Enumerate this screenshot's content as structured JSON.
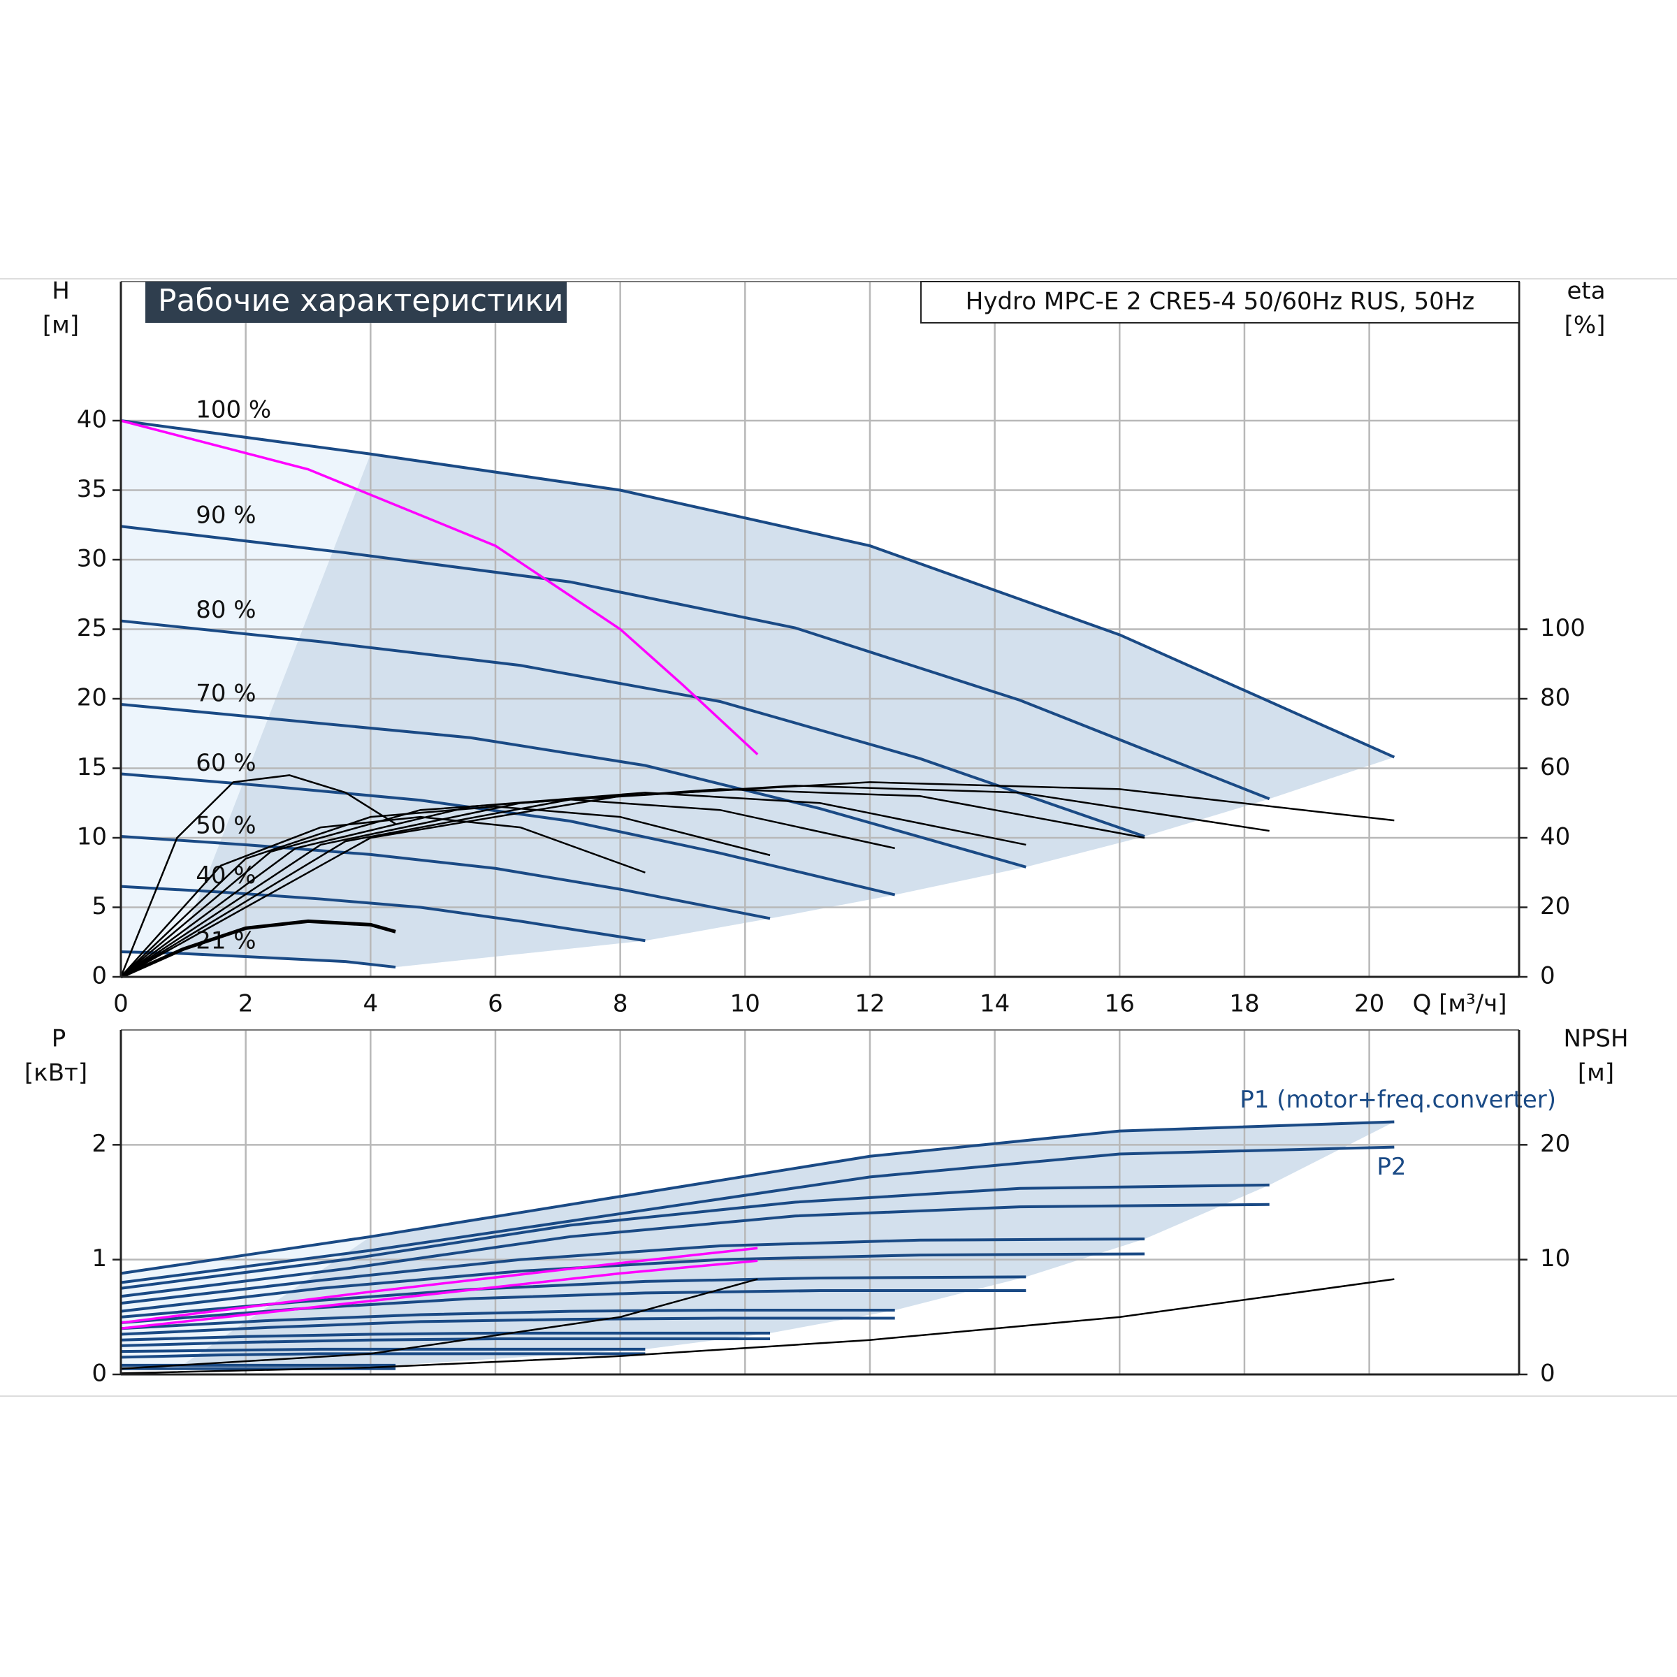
{
  "chart_data": [
    {
      "type": "line",
      "title": "Рабочие характеристики",
      "subtitle": "Hydro MPC-E 2 CRE5-4 50/60Hz RUS, 50Hz",
      "y_label": "H",
      "y_unit": "[м]",
      "y2_label": "eta",
      "y2_unit": "[%]",
      "x_label": "Q [м³/ч]",
      "xlim": [
        0,
        22.4
      ],
      "xticks": [
        0,
        2,
        4,
        6,
        8,
        10,
        12,
        14,
        16,
        18,
        20
      ],
      "ylim": [
        0,
        50
      ],
      "yticks": [
        0,
        5,
        10,
        15,
        20,
        25,
        30,
        35,
        40
      ],
      "y2lim": [
        0,
        200
      ],
      "y2ticks": [
        0,
        20,
        40,
        60,
        80,
        100
      ],
      "grid": true,
      "series": [
        {
          "name": "100 %",
          "color": "#1a4a85",
          "x": [
            0,
            4,
            8,
            12,
            16,
            20.4
          ],
          "values": [
            40,
            37.6,
            35,
            31,
            24.6,
            15.8
          ]
        },
        {
          "name": "90 %",
          "color": "#1a4a85",
          "x": [
            0,
            3.6,
            7.2,
            10.8,
            14.4,
            18.4
          ],
          "values": [
            32.4,
            30.5,
            28.4,
            25.1,
            19.9,
            12.8
          ]
        },
        {
          "name": "80 %",
          "color": "#1a4a85",
          "x": [
            0,
            3.2,
            6.4,
            9.6,
            12.8,
            16.4
          ],
          "values": [
            25.6,
            24.1,
            22.4,
            19.8,
            15.7,
            10.1
          ]
        },
        {
          "name": "70 %",
          "color": "#1a4a85",
          "x": [
            0,
            2.8,
            5.6,
            8.4,
            11.2,
            14.5
          ],
          "values": [
            19.6,
            18.4,
            17.2,
            15.2,
            12.1,
            7.9
          ]
        },
        {
          "name": "60 %",
          "color": "#1a4a85",
          "x": [
            0,
            2.4,
            4.8,
            7.2,
            9.6,
            12.4
          ],
          "values": [
            14.6,
            13.7,
            12.7,
            11.2,
            8.9,
            5.9
          ]
        },
        {
          "name": "50 %",
          "color": "#1a4a85",
          "x": [
            0,
            2,
            4,
            6,
            8,
            10.4
          ],
          "values": [
            10.1,
            9.5,
            8.8,
            7.8,
            6.3,
            4.2
          ]
        },
        {
          "name": "40 %",
          "color": "#1a4a85",
          "x": [
            0,
            1.6,
            3.2,
            4.8,
            6.4,
            8.4
          ],
          "values": [
            6.5,
            6.1,
            5.6,
            5.0,
            4.0,
            2.6
          ]
        },
        {
          "name": "21 %",
          "color": "#1a4a85",
          "x": [
            0,
            0.9,
            1.8,
            2.7,
            3.6,
            4.4
          ],
          "values": [
            1.8,
            1.7,
            1.5,
            1.3,
            1.1,
            0.7
          ]
        },
        {
          "color": "#ff00ff",
          "x": [
            0,
            3,
            6,
            8,
            9,
            10.2
          ],
          "values": [
            40,
            36.5,
            31,
            25,
            21,
            16
          ]
        },
        {
          "color": "#000000",
          "axis": "y2",
          "x": [
            0,
            4,
            8,
            12,
            16,
            20.4
          ],
          "values": [
            0,
            40,
            52,
            56,
            54,
            45
          ]
        },
        {
          "color": "#000000",
          "axis": "y2",
          "x": [
            0,
            3.6,
            7.2,
            10.8,
            14.4,
            18.4
          ],
          "values": [
            0,
            39,
            51,
            55,
            53,
            42
          ]
        },
        {
          "color": "#000000",
          "axis": "y2",
          "x": [
            0,
            3.2,
            6.4,
            9.6,
            12.8,
            16.4
          ],
          "values": [
            0,
            38,
            50,
            54,
            52,
            40
          ]
        },
        {
          "color": "#000000",
          "axis": "y2",
          "x": [
            0,
            2.8,
            5.6,
            8.4,
            11.2,
            14.5
          ],
          "values": [
            0,
            37,
            49,
            53,
            50,
            38
          ]
        },
        {
          "color": "#000000",
          "axis": "y2",
          "x": [
            0,
            2.4,
            4.8,
            7.2,
            9.6,
            12.4
          ],
          "values": [
            0,
            36,
            48,
            51,
            48,
            37
          ]
        },
        {
          "color": "#000000",
          "axis": "y2",
          "x": [
            0,
            2,
            4,
            6,
            8,
            10.4
          ],
          "values": [
            0,
            34,
            46,
            49,
            46,
            35
          ]
        },
        {
          "color": "#000000",
          "axis": "y2",
          "x": [
            0,
            1.6,
            3.2,
            4.8,
            6.4,
            8.4
          ],
          "values": [
            0,
            32,
            43,
            46,
            43,
            30
          ]
        },
        {
          "color": "#000000",
          "axis": "y2",
          "x": [
            0,
            0.9,
            1.8,
            2.7,
            3.6,
            4.4
          ],
          "values": [
            0,
            40,
            56,
            58,
            53,
            44
          ]
        },
        {
          "color": "#000000",
          "axis": "y2",
          "x": [
            0,
            1,
            2,
            3,
            4,
            4.4
          ],
          "values": [
            0,
            8,
            14,
            16,
            15,
            13
          ]
        }
      ]
    },
    {
      "type": "line",
      "y_label": "P",
      "y_unit": "[кВт]",
      "y2_label": "NPSH",
      "y2_unit": "[м]",
      "ylim": [
        0,
        3
      ],
      "yticks": [
        0,
        1,
        2
      ],
      "y2lim": [
        0,
        30
      ],
      "y2ticks": [
        0,
        10,
        20
      ],
      "grid": true,
      "series": [
        {
          "name": "P1 (motor+freq.converter)",
          "color": "#1a4a85",
          "x": [
            0,
            4,
            8,
            12,
            16,
            20.4
          ],
          "values": [
            0.88,
            1.2,
            1.55,
            1.9,
            2.12,
            2.2
          ]
        },
        {
          "name": "P2",
          "color": "#1a4a85",
          "x": [
            0,
            4,
            8,
            12,
            16,
            20.4
          ],
          "values": [
            0.8,
            1.08,
            1.4,
            1.72,
            1.92,
            1.98
          ]
        },
        {
          "color": "#1a4a85",
          "x": [
            0,
            3.6,
            7.2,
            10.8,
            14.4,
            18.4
          ],
          "values": [
            0.75,
            1.0,
            1.3,
            1.5,
            1.62,
            1.65
          ]
        },
        {
          "color": "#1a4a85",
          "x": [
            0,
            3.6,
            7.2,
            10.8,
            14.4,
            18.4
          ],
          "values": [
            0.68,
            0.92,
            1.2,
            1.38,
            1.46,
            1.48
          ]
        },
        {
          "color": "#1a4a85",
          "x": [
            0,
            3.2,
            6.4,
            9.6,
            12.8,
            16.4
          ],
          "values": [
            0.62,
            0.82,
            1.0,
            1.12,
            1.17,
            1.18
          ]
        },
        {
          "color": "#1a4a85",
          "x": [
            0,
            3.2,
            6.4,
            9.6,
            12.8,
            16.4
          ],
          "values": [
            0.55,
            0.75,
            0.9,
            1.0,
            1.04,
            1.05
          ]
        },
        {
          "color": "#1a4a85",
          "x": [
            0,
            2.8,
            5.6,
            8.4,
            11.2,
            14.5
          ],
          "values": [
            0.5,
            0.63,
            0.74,
            0.81,
            0.84,
            0.85
          ]
        },
        {
          "color": "#1a4a85",
          "x": [
            0,
            2.8,
            5.6,
            8.4,
            11.2,
            14.5
          ],
          "values": [
            0.45,
            0.57,
            0.66,
            0.71,
            0.73,
            0.73
          ]
        },
        {
          "color": "#1a4a85",
          "x": [
            0,
            2.4,
            4.8,
            7.2,
            9.6,
            12.4
          ],
          "values": [
            0.4,
            0.47,
            0.52,
            0.55,
            0.56,
            0.56
          ]
        },
        {
          "color": "#1a4a85",
          "x": [
            0,
            2.4,
            4.8,
            7.2,
            9.6,
            12.4
          ],
          "values": [
            0.35,
            0.41,
            0.46,
            0.48,
            0.49,
            0.49
          ]
        },
        {
          "color": "#1a4a85",
          "x": [
            0,
            2,
            4,
            6,
            8,
            10.4
          ],
          "values": [
            0.3,
            0.33,
            0.35,
            0.36,
            0.36,
            0.36
          ]
        },
        {
          "color": "#1a4a85",
          "x": [
            0,
            2,
            4,
            6,
            8,
            10.4
          ],
          "values": [
            0.25,
            0.28,
            0.3,
            0.31,
            0.31,
            0.31
          ]
        },
        {
          "color": "#1a4a85",
          "x": [
            0,
            1.6,
            3.2,
            4.8,
            6.4,
            8.4
          ],
          "values": [
            0.2,
            0.21,
            0.22,
            0.22,
            0.22,
            0.22
          ]
        },
        {
          "color": "#1a4a85",
          "x": [
            0,
            1.6,
            3.2,
            4.8,
            6.4,
            8.4
          ],
          "values": [
            0.15,
            0.17,
            0.18,
            0.18,
            0.18,
            0.18
          ]
        },
        {
          "color": "#1a4a85",
          "x": [
            0,
            0.9,
            1.8,
            2.7,
            3.6,
            4.4
          ],
          "values": [
            0.08,
            0.08,
            0.08,
            0.08,
            0.08,
            0.08
          ]
        },
        {
          "color": "#1a4a85",
          "x": [
            0,
            0.9,
            1.8,
            2.7,
            3.6,
            4.4
          ],
          "values": [
            0.05,
            0.05,
            0.05,
            0.05,
            0.05,
            0.05
          ]
        },
        {
          "color": "#ff00ff",
          "x": [
            0,
            4,
            8,
            10.2
          ],
          "values": [
            0.45,
            0.72,
            0.97,
            1.1
          ]
        },
        {
          "color": "#ff00ff",
          "x": [
            0,
            4,
            8,
            10.2
          ],
          "values": [
            0.4,
            0.64,
            0.88,
            0.99
          ]
        },
        {
          "color": "#000000",
          "axis": "y2",
          "x": [
            0,
            4,
            8,
            12,
            16,
            20.4
          ],
          "values": [
            0.1,
            0.6,
            1.6,
            3.0,
            5.0,
            8.3
          ]
        },
        {
          "color": "#000000",
          "axis": "y2",
          "x": [
            0,
            4,
            8,
            10.2
          ],
          "values": [
            0.5,
            1.8,
            5,
            8.3
          ]
        }
      ]
    }
  ]
}
